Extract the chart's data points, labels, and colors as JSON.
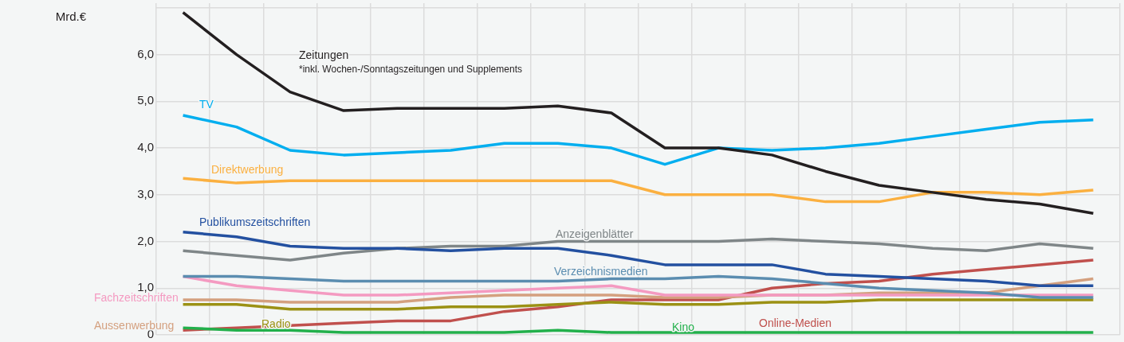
{
  "chart_data": {
    "type": "line",
    "ylabel": "Mrd.€",
    "annotations": [
      "*inkl. Wochen-/Sonntagszeitungen und Supplements"
    ],
    "categories": [
      null,
      null,
      null,
      null,
      null,
      null,
      null,
      null,
      null,
      null,
      null,
      null,
      null,
      null,
      null,
      null,
      null,
      null
    ],
    "series": [
      {
        "name": "Zeitungen",
        "color": "#231f20",
        "values": [
          6.9,
          6.0,
          5.2,
          4.8,
          4.85,
          4.85,
          4.85,
          4.9,
          4.75,
          4.0,
          4.0,
          3.85,
          3.5,
          3.2,
          3.05,
          2.9,
          2.8,
          2.6
        ]
      },
      {
        "name": "TV",
        "color": "#00aeef",
        "values": [
          4.7,
          4.45,
          3.95,
          3.85,
          3.9,
          3.95,
          4.1,
          4.1,
          4.0,
          3.65,
          4.0,
          3.95,
          4.0,
          4.1,
          4.25,
          4.4,
          4.55,
          4.6
        ]
      },
      {
        "name": "Direktwerbung",
        "color": "#fbb040",
        "values": [
          3.35,
          3.25,
          3.3,
          3.3,
          3.3,
          3.3,
          3.3,
          3.3,
          3.3,
          3.0,
          3.0,
          3.0,
          2.85,
          2.85,
          3.05,
          3.05,
          3.0,
          3.1
        ]
      },
      {
        "name": "Publikumszeitschriften",
        "color": "#2350a0",
        "values": [
          2.2,
          2.1,
          1.9,
          1.85,
          1.85,
          1.8,
          1.85,
          1.85,
          1.7,
          1.5,
          1.5,
          1.5,
          1.3,
          1.25,
          1.2,
          1.15,
          1.05,
          1.05
        ]
      },
      {
        "name": "Anzeigenblätter",
        "color": "#7f8688",
        "values": [
          1.8,
          1.7,
          1.6,
          1.75,
          1.85,
          1.9,
          1.9,
          2.0,
          2.0,
          2.0,
          2.0,
          2.05,
          2.0,
          1.95,
          1.85,
          1.8,
          1.95,
          1.85
        ]
      },
      {
        "name": "Verzeichnismedien",
        "color": "#5b8db0",
        "values": [
          1.25,
          1.25,
          1.2,
          1.15,
          1.15,
          1.15,
          1.15,
          1.15,
          1.2,
          1.2,
          1.25,
          1.2,
          1.1,
          1.0,
          0.95,
          0.9,
          0.8,
          0.8
        ]
      },
      {
        "name": "Fachzeitschriften",
        "color": "#f49ac1",
        "values": [
          1.25,
          1.05,
          0.95,
          0.85,
          0.85,
          0.9,
          0.95,
          1.0,
          1.05,
          0.85,
          0.85,
          0.85,
          0.85,
          0.85,
          0.85,
          0.85,
          0.85,
          0.85
        ]
      },
      {
        "name": "Aussenwerbung",
        "color": "#d4a07f",
        "values": [
          0.75,
          0.75,
          0.7,
          0.7,
          0.7,
          0.8,
          0.85,
          0.85,
          0.85,
          0.8,
          0.8,
          0.85,
          0.85,
          0.9,
          0.9,
          0.9,
          1.05,
          1.2
        ]
      },
      {
        "name": "Radio",
        "color": "#9b9114",
        "values": [
          0.65,
          0.65,
          0.55,
          0.55,
          0.55,
          0.6,
          0.6,
          0.65,
          0.7,
          0.65,
          0.65,
          0.7,
          0.7,
          0.75,
          0.75,
          0.75,
          0.75,
          0.75
        ]
      },
      {
        "name": "Kino",
        "color": "#22b04b",
        "values": [
          0.15,
          0.1,
          0.1,
          0.05,
          0.05,
          0.05,
          0.05,
          0.1,
          0.05,
          0.05,
          0.05,
          0.05,
          0.05,
          0.05,
          0.05,
          0.05,
          0.05,
          0.05
        ]
      },
      {
        "name": "Online-Medien",
        "color": "#c0504d",
        "values": [
          0.1,
          0.15,
          0.2,
          0.25,
          0.3,
          0.3,
          0.5,
          0.6,
          0.75,
          0.75,
          0.75,
          1.0,
          1.1,
          1.15,
          1.3,
          1.4,
          1.5,
          1.6
        ]
      }
    ],
    "ylim": [
      0,
      7.1
    ],
    "yticks": [
      0,
      {
        "value": 1,
        "label": "1,0"
      },
      {
        "value": 2,
        "label": "2,0"
      },
      {
        "value": 3,
        "label": "3,0"
      },
      {
        "value": 4,
        "label": "4,0"
      },
      {
        "value": 5,
        "label": "5,0"
      },
      {
        "value": 6,
        "label": "6,0"
      },
      {
        "value": 7,
        "label": null
      }
    ],
    "grid": true,
    "tick_labels": "y"
  }
}
